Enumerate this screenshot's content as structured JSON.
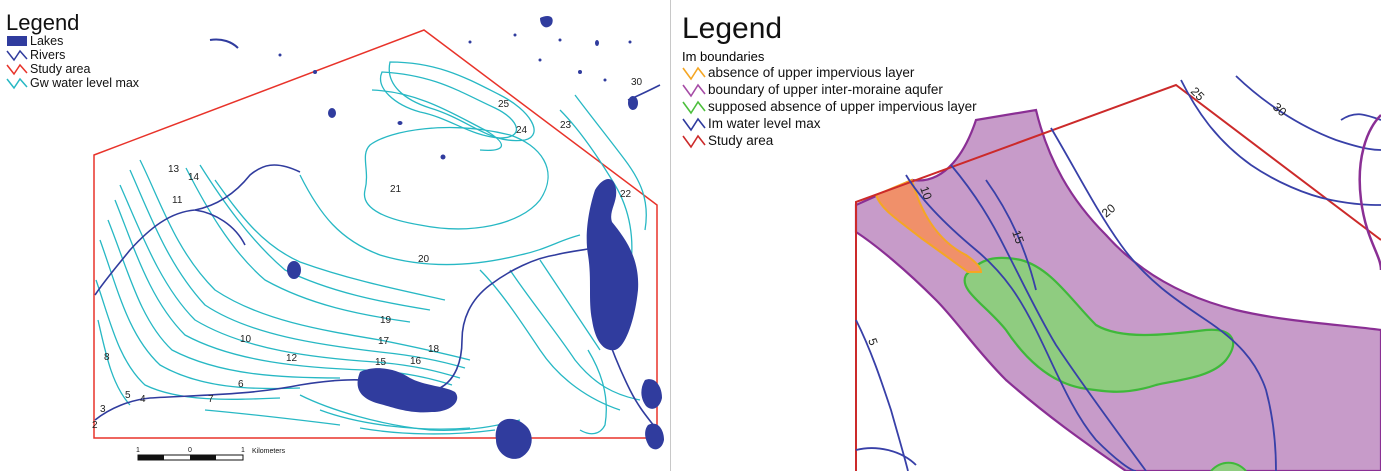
{
  "left_map": {
    "legend": {
      "title": "Legend",
      "items": [
        {
          "label": "Lakes",
          "color": "#303c9e",
          "symbol": "lake-swatch-icon"
        },
        {
          "label": "Rivers",
          "color": "#303c9e",
          "symbol": "river-line-icon"
        },
        {
          "label": "Study  area",
          "color": "#e8332a",
          "symbol": "study-area-line-icon"
        },
        {
          "label": "Gw  water  level  max",
          "color": "#27b8c4",
          "symbol": "contour-line-icon"
        }
      ]
    },
    "contour_labels": [
      "30",
      "25",
      "24",
      "23",
      "22",
      "21",
      "20",
      "19",
      "18",
      "17",
      "16",
      "15",
      "14",
      "13",
      "12",
      "11",
      "10",
      "8",
      "7",
      "6",
      "5",
      "4",
      "3",
      "2"
    ],
    "scale_bar": {
      "ticks": [
        "1",
        "0",
        "1"
      ],
      "unit": "Kilometers"
    }
  },
  "right_map": {
    "legend": {
      "title": "Legend",
      "subtitle": "Im  boundaries",
      "items": [
        {
          "label": "absence of upper impervious layer",
          "color": "#f5a623",
          "symbol": "orange-line-icon"
        },
        {
          "label": "boundary of upper inter-moraine aqufer",
          "color": "#a64ca6",
          "symbol": "purple-line-icon"
        },
        {
          "label": "supposed absence of upper impervious layer",
          "color": "#4cbf3c",
          "symbol": "green-line-icon"
        },
        {
          "label": "Im  water  level  max",
          "color": "#2e3a9e",
          "symbol": "blue-line-icon"
        },
        {
          "label": "Study  area",
          "color": "#cc2a2a",
          "symbol": "red-line-icon"
        }
      ]
    },
    "contour_labels": [
      "30",
      "25",
      "20",
      "15",
      "10",
      "5"
    ]
  }
}
